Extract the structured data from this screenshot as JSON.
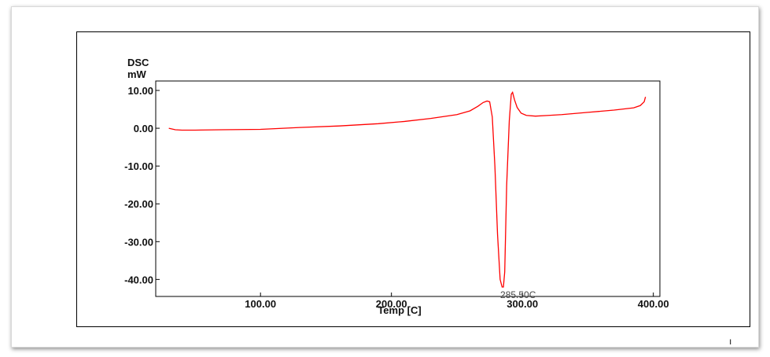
{
  "chart_data": {
    "type": "line",
    "ylabel_line1": "DSC",
    "ylabel_line2": "mW",
    "xlabel": "Temp [C]",
    "xlim": [
      20,
      405
    ],
    "ylim": [
      -44.5,
      12.5
    ],
    "x_ticks": [
      100,
      200,
      300,
      400
    ],
    "x_tick_labels": [
      "100.00",
      "200.00",
      "300.00",
      "400.00"
    ],
    "y_ticks": [
      10,
      0,
      -10,
      -20,
      -30,
      -40
    ],
    "y_tick_labels": [
      "10.00",
      "0.00",
      "-10.00",
      "-20.00",
      "-30.00",
      "-40.00"
    ],
    "grid": false,
    "series_color": "#ff0000",
    "series": [
      {
        "x": [
          30,
          35,
          40,
          50,
          70,
          100,
          130,
          160,
          190,
          210,
          230,
          250,
          260,
          266,
          270,
          273,
          275,
          277,
          279,
          281,
          283,
          284.5,
          285.5,
          286.5,
          288,
          290,
          291.5,
          292.5,
          294,
          296,
          299,
          303,
          310,
          320,
          330,
          350,
          370,
          385,
          390,
          393,
          394
        ],
        "y": [
          0.0,
          -0.4,
          -0.5,
          -0.5,
          -0.4,
          -0.3,
          0.2,
          0.6,
          1.2,
          1.8,
          2.6,
          3.6,
          4.6,
          5.8,
          6.8,
          7.2,
          7.0,
          3.0,
          -10.0,
          -28.0,
          -40.0,
          -42.0,
          -42.0,
          -38.0,
          -15.0,
          2.0,
          9.0,
          9.5,
          7.5,
          5.5,
          4.0,
          3.4,
          3.2,
          3.4,
          3.6,
          4.2,
          4.8,
          5.4,
          6.0,
          7.0,
          8.3
        ]
      }
    ],
    "annotations": [
      {
        "text": "285.50C",
        "x": 285.5,
        "y": -42.0
      }
    ]
  },
  "footer": {
    "corner_mark": "ı"
  }
}
